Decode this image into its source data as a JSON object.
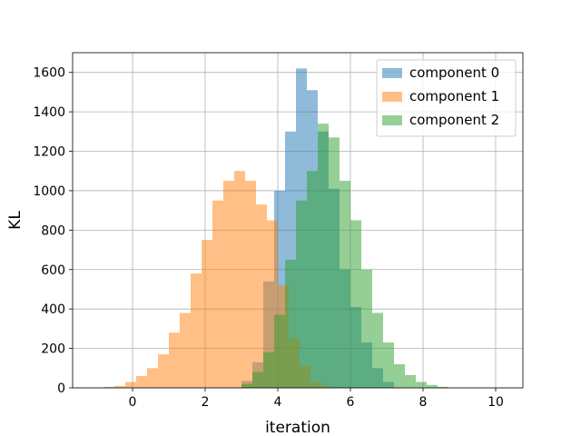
{
  "chart_data": {
    "type": "histogram",
    "title": "",
    "xlabel": "iteration",
    "ylabel": "KL",
    "xlim": [
      -1.65,
      10.75
    ],
    "ylim": [
      0,
      1700
    ],
    "xticks": [
      0,
      2,
      4,
      6,
      8,
      10
    ],
    "yticks": [
      0,
      200,
      400,
      600,
      800,
      1000,
      1200,
      1400,
      1600
    ],
    "grid": true,
    "legend_position": "top-right",
    "bar_opacity": 0.5,
    "series": [
      {
        "name": "component 0",
        "color": "#1f77b4",
        "bin_edges": [
          3.0,
          3.3,
          3.6,
          3.9,
          4.2,
          4.5,
          4.8,
          5.1,
          5.4,
          5.7,
          6.0,
          6.3,
          6.6,
          6.9,
          7.2
        ],
        "counts": [
          35,
          130,
          540,
          1000,
          1300,
          1620,
          1510,
          1300,
          1010,
          600,
          410,
          230,
          100,
          30
        ]
      },
      {
        "name": "component 1",
        "color": "#ff7f0e",
        "bin_edges": [
          -0.8,
          -0.5,
          -0.2,
          0.1,
          0.4,
          0.7,
          1.0,
          1.3,
          1.6,
          1.9,
          2.2,
          2.5,
          2.8,
          3.1,
          3.4,
          3.7,
          4.0,
          4.3,
          4.6,
          4.9,
          5.2,
          5.5,
          5.8
        ],
        "counts": [
          5,
          10,
          30,
          60,
          100,
          170,
          280,
          380,
          580,
          750,
          950,
          1050,
          1100,
          1050,
          930,
          850,
          520,
          250,
          110,
          30,
          10,
          2
        ]
      },
      {
        "name": "component 2",
        "color": "#2ca02c",
        "bin_edges": [
          3.0,
          3.3,
          3.6,
          3.9,
          4.2,
          4.5,
          4.8,
          5.1,
          5.4,
          5.7,
          6.0,
          6.3,
          6.6,
          6.9,
          7.2,
          7.5,
          7.8,
          8.1,
          8.4,
          8.7
        ],
        "counts": [
          20,
          80,
          180,
          370,
          650,
          950,
          1100,
          1340,
          1270,
          1050,
          850,
          600,
          380,
          230,
          120,
          65,
          30,
          15,
          5
        ]
      }
    ]
  }
}
